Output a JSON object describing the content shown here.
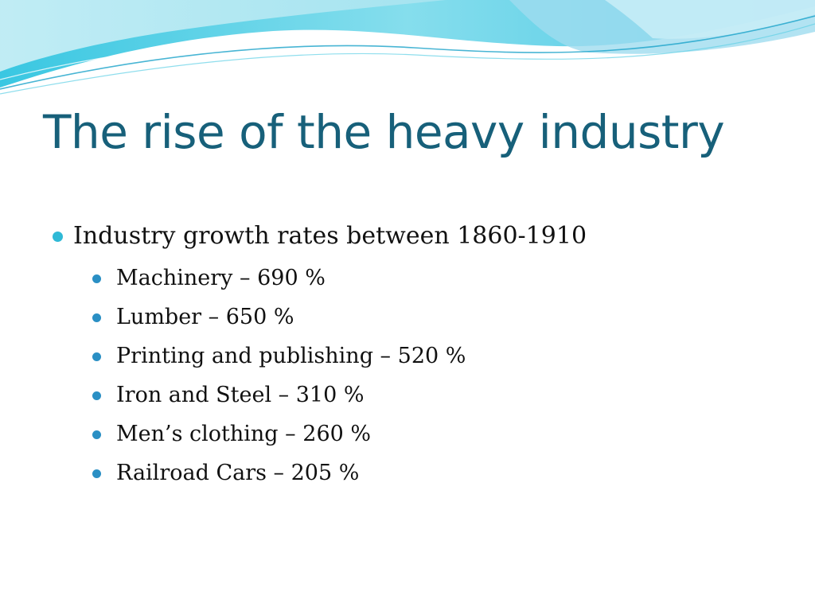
{
  "slide": {
    "title": "The rise of the heavy industry",
    "bullets": [
      {
        "text": "Industry growth rates between 1860-1910",
        "sub_bullets": [
          "Machinery – 690 %",
          "Lumber – 650 %",
          "Printing and publishing – 520 %",
          "Iron and Steel – 310 %",
          "Men’s clothing – 260 %",
          "Railroad Cars – 205 %"
        ]
      }
    ]
  },
  "colors": {
    "title": "#17607a",
    "bullet_level1": "#2fb9d6",
    "bullet_level2": "#2a8fc4",
    "wave_light": "#bfeaf3",
    "wave_mid": "#5fd0e6",
    "wave_dark": "#1aa3c9"
  },
  "icons": {
    "level1_bullet": "filled-circle-icon",
    "level2_bullet": "filled-circle-icon"
  }
}
